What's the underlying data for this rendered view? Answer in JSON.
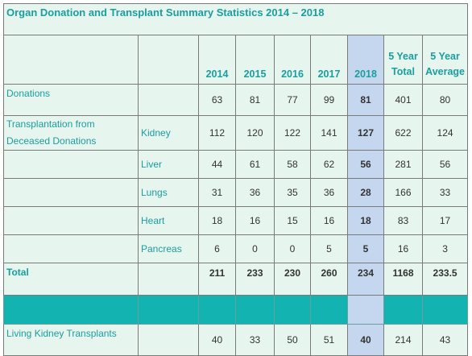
{
  "title": "Organ Donation and Transplant Summary Statistics 2014 – 2018",
  "headers": {
    "years": [
      "2014",
      "2015",
      "2016",
      "2017",
      "2018"
    ],
    "total_line1": "5 Year",
    "total_line2": "Total",
    "avg_line1": "5 Year",
    "avg_line2": "Average"
  },
  "rows": {
    "donations": {
      "label": "Donations",
      "values": [
        "63",
        "81",
        "77",
        "99",
        "81",
        "401",
        "80"
      ]
    },
    "transplant_group_label": "Transplantation from Deceased Donations",
    "kidney": {
      "organ": "Kidney",
      "values": [
        "112",
        "120",
        "122",
        "141",
        "127",
        "622",
        "124"
      ]
    },
    "liver": {
      "organ": "Liver",
      "values": [
        "44",
        "61",
        "58",
        "62",
        "56",
        "281",
        "56"
      ]
    },
    "lungs": {
      "organ": "Lungs",
      "values": [
        "31",
        "36",
        "35",
        "36",
        "28",
        "166",
        "33"
      ]
    },
    "heart": {
      "organ": "Heart",
      "values": [
        "18",
        "16",
        "15",
        "16",
        "18",
        "83",
        "17"
      ]
    },
    "pancreas": {
      "organ": "Pancreas",
      "values": [
        "6",
        "0",
        "0",
        "5",
        "5",
        "16",
        "3"
      ]
    },
    "total": {
      "label": "Total",
      "values": [
        "211",
        "233",
        "230",
        "260",
        "234",
        "1168",
        "233.5"
      ]
    },
    "living": {
      "label": "Living Kidney Transplants",
      "values": [
        "40",
        "33",
        "50",
        "51",
        "40",
        "214",
        "43"
      ]
    }
  },
  "colors": {
    "teal_text": "#1a9e9e",
    "band": "#12b3b0",
    "highlight_2018": "#c5d7ef",
    "table_bg": "#e7f5ef"
  }
}
